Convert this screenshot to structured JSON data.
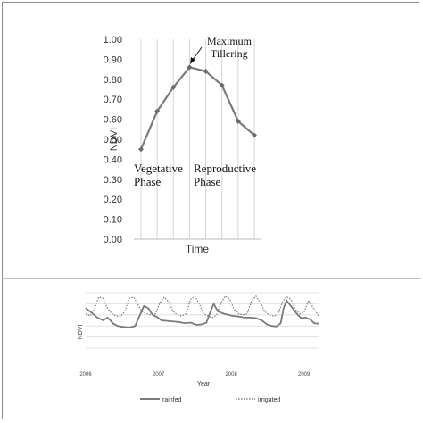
{
  "chart_data": [
    {
      "type": "line",
      "xlabel": "Time",
      "ylabel": "NDVI",
      "ylim": [
        0,
        1
      ],
      "y_ticks": [
        "0.00",
        "0.10",
        "0.20",
        "0.30",
        "0.40",
        "0.50",
        "0.60",
        "0.70",
        "0.80",
        "0.90",
        "1.00"
      ],
      "grid": "vertical",
      "series": [
        {
          "values": [
            0.45,
            0.64,
            0.76,
            0.86,
            0.84,
            0.77,
            0.59,
            0.52
          ],
          "color": "#7a7a7a"
        }
      ],
      "annotations": {
        "peak_line1": "Maximum",
        "peak_line2": "Tillering",
        "vegetative_line1": "Vegetative",
        "vegetative_line2": "Phase",
        "reproductive_line1": "Reproductive",
        "reproductive_line2": "Phase"
      }
    },
    {
      "type": "line",
      "xlabel": "Year",
      "ylabel": "NDVI",
      "x_ticks": [
        "2006",
        "2007",
        "2008",
        "2009"
      ],
      "xlim": [
        2006.0,
        2009.2
      ],
      "ylim": [
        0,
        1
      ],
      "grid": "horizontal",
      "legend_position": "bottom",
      "series": [
        {
          "name": "rainfed",
          "color": "#7a7a7a",
          "style": "solid",
          "x": [
            2006.0,
            2006.08,
            2006.16,
            2006.24,
            2006.3,
            2006.34,
            2006.38,
            2006.44,
            2006.52,
            2006.6,
            2006.68,
            2006.74,
            2006.8,
            2006.86,
            2006.92,
            2006.98,
            2007.04,
            2007.12,
            2007.2,
            2007.28,
            2007.36,
            2007.44,
            2007.52,
            2007.6,
            2007.66,
            2007.72,
            2007.76,
            2007.8,
            2007.84,
            2007.9,
            2007.96,
            2008.02,
            2008.1,
            2008.18,
            2008.26,
            2008.34,
            2008.42,
            2008.5,
            2008.56,
            2008.62,
            2008.68,
            2008.72,
            2008.76,
            2008.82,
            2008.9,
            2008.96,
            2009.02,
            2009.08,
            2009.14,
            2009.2
          ],
          "y": [
            0.72,
            0.64,
            0.55,
            0.5,
            0.55,
            0.5,
            0.44,
            0.4,
            0.38,
            0.37,
            0.4,
            0.58,
            0.76,
            0.72,
            0.6,
            0.56,
            0.5,
            0.49,
            0.48,
            0.47,
            0.45,
            0.46,
            0.42,
            0.43,
            0.46,
            0.68,
            0.8,
            0.7,
            0.65,
            0.62,
            0.6,
            0.58,
            0.57,
            0.55,
            0.55,
            0.54,
            0.5,
            0.42,
            0.4,
            0.39,
            0.45,
            0.72,
            0.86,
            0.76,
            0.62,
            0.54,
            0.55,
            0.52,
            0.45,
            0.44
          ]
        },
        {
          "name": "irrigated",
          "color": "#7a7a7a",
          "style": "dotted",
          "x": [
            2006.0,
            2006.06,
            2006.12,
            2006.18,
            2006.24,
            2006.3,
            2006.36,
            2006.42,
            2006.48,
            2006.54,
            2006.6,
            2006.66,
            2006.72,
            2006.78,
            2006.84,
            2006.9,
            2006.96,
            2007.02,
            2007.08,
            2007.14,
            2007.2,
            2007.26,
            2007.32,
            2007.38,
            2007.44,
            2007.5,
            2007.56,
            2007.62,
            2007.68,
            2007.74,
            2007.8,
            2007.86,
            2007.92,
            2007.98,
            2008.04,
            2008.1,
            2008.16,
            2008.22,
            2008.28,
            2008.34,
            2008.4,
            2008.46,
            2008.52,
            2008.58,
            2008.64,
            2008.7,
            2008.76,
            2008.82,
            2008.88,
            2008.94,
            2009.0,
            2009.06,
            2009.12,
            2009.2
          ],
          "y": [
            0.62,
            0.58,
            0.7,
            0.92,
            0.9,
            0.72,
            0.62,
            0.58,
            0.57,
            0.66,
            0.9,
            0.92,
            0.78,
            0.65,
            0.62,
            0.6,
            0.62,
            0.82,
            0.92,
            0.84,
            0.66,
            0.6,
            0.58,
            0.62,
            0.88,
            0.94,
            0.8,
            0.62,
            0.58,
            0.55,
            0.6,
            0.82,
            0.94,
            0.88,
            0.7,
            0.62,
            0.6,
            0.62,
            0.85,
            0.94,
            0.82,
            0.66,
            0.6,
            0.58,
            0.6,
            0.82,
            0.93,
            0.88,
            0.7,
            0.62,
            0.64,
            0.86,
            0.74,
            0.58
          ]
        }
      ]
    }
  ]
}
